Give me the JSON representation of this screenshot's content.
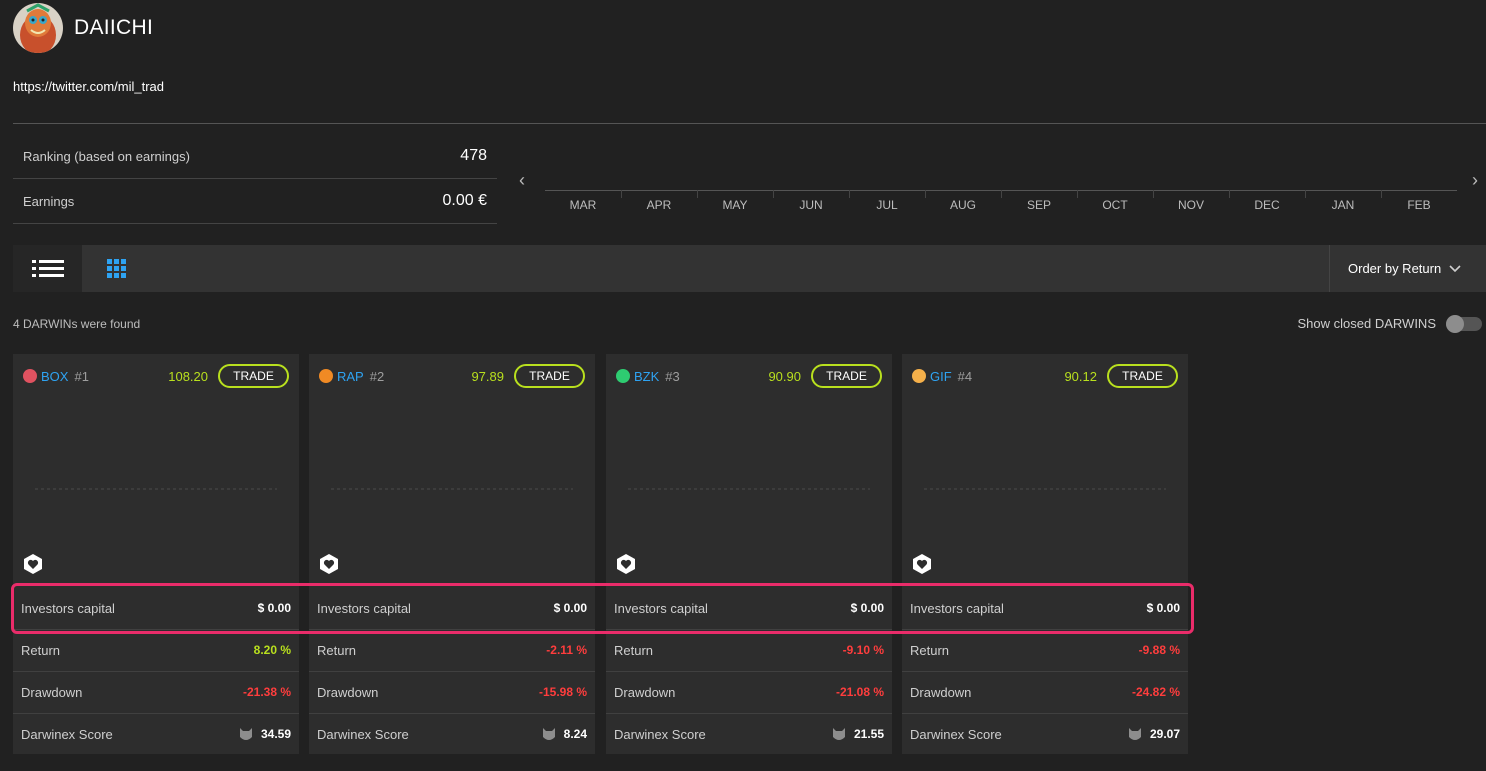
{
  "profile": {
    "username": "DAIICHI",
    "link": "https://twitter.com/mil_trad"
  },
  "stats": {
    "ranking_label": "Ranking (based on earnings)",
    "ranking_value": "478",
    "earnings_label": "Earnings",
    "earnings_value": "0.00 €"
  },
  "timeline": {
    "months": [
      "MAR",
      "APR",
      "MAY",
      "JUN",
      "JUL",
      "AUG",
      "SEP",
      "OCT",
      "NOV",
      "DEC",
      "JAN",
      "FEB"
    ]
  },
  "toolbar": {
    "list_view_icon": "list-icon",
    "grid_view_icon": "grid-icon",
    "order_label": "Order by Return"
  },
  "results": {
    "found_text": "4 DARWINs were found",
    "show_closed_label": "Show closed DARWINS"
  },
  "cards": [
    {
      "ticker": "BOX",
      "rank": "#1",
      "price": "108.20",
      "trade": "TRADE",
      "color": "#e05260",
      "investors_capital_label": "Investors capital",
      "investors_capital": "$ 0.00",
      "return_label": "Return",
      "return": "8.20 %",
      "drawdown_label": "Drawdown",
      "drawdown": "-21.38 %",
      "score_label": "Darwinex Score",
      "score": "34.59"
    },
    {
      "ticker": "RAP",
      "rank": "#2",
      "price": "97.89",
      "trade": "TRADE",
      "color": "#f08a24",
      "investors_capital_label": "Investors capital",
      "investors_capital": "$ 0.00",
      "return_label": "Return",
      "return": "-2.11 %",
      "drawdown_label": "Drawdown",
      "drawdown": "-15.98 %",
      "score_label": "Darwinex Score",
      "score": "8.24"
    },
    {
      "ticker": "BZK",
      "rank": "#3",
      "price": "90.90",
      "trade": "TRADE",
      "color": "#2ecc71",
      "investors_capital_label": "Investors capital",
      "investors_capital": "$ 0.00",
      "return_label": "Return",
      "return": "-9.10 %",
      "drawdown_label": "Drawdown",
      "drawdown": "-21.08 %",
      "score_label": "Darwinex Score",
      "score": "21.55"
    },
    {
      "ticker": "GIF",
      "rank": "#4",
      "price": "90.12",
      "trade": "TRADE",
      "color": "#f5b04a",
      "investors_capital_label": "Investors capital",
      "investors_capital": "$ 0.00",
      "return_label": "Return",
      "return": "-9.88 %",
      "drawdown_label": "Drawdown",
      "drawdown": "-24.82 %",
      "score_label": "Darwinex Score",
      "score": "29.07"
    }
  ],
  "colors": {
    "accent_green": "#b9e01e",
    "negative_red": "#ff3d3d",
    "link_blue": "#2ea3f2",
    "highlight_pink": "#ea2c6a"
  }
}
